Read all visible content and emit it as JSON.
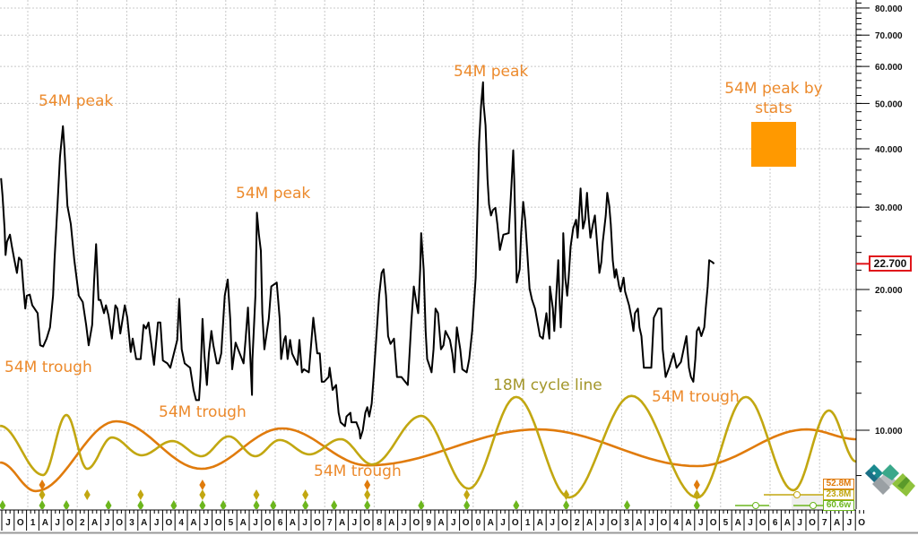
{
  "chart_data": {
    "type": "line",
    "y_scale": "log",
    "ylim": [
      6.5,
      85
    ],
    "y_ticks": [
      "10.000",
      "20.000",
      "30.000",
      "40.000",
      "50.000",
      "60.000",
      "70.000",
      "80.000"
    ],
    "y_tick_values": [
      10,
      20,
      30,
      40,
      50,
      60,
      70,
      80
    ],
    "grid": true,
    "x_range": [
      2000.44,
      2017.9
    ],
    "x_tick_labels": [
      "J",
      "O",
      "1",
      "A",
      "J",
      "O",
      "2",
      "A",
      "J",
      "O",
      "3",
      "A",
      "J",
      "O",
      "4",
      "A",
      "J",
      "O",
      "5",
      "A",
      "J",
      "O",
      "6",
      "A",
      "J",
      "O",
      "7",
      "A",
      "J",
      "O",
      "8",
      "A",
      "J",
      "O",
      "9",
      "A",
      "J",
      "O",
      "0",
      "A",
      "J",
      "O",
      "1",
      "A",
      "J",
      "O",
      "2",
      "A",
      "J",
      "O",
      "3",
      "A",
      "J",
      "O",
      "4",
      "A",
      "J",
      "O",
      "5",
      "A",
      "J",
      "O",
      "6",
      "A",
      "J",
      "O",
      "7",
      "A",
      "J",
      "O"
    ],
    "last_value": "22.700",
    "price": [
      [
        2000.46,
        34.6
      ],
      [
        2000.49,
        31.8
      ],
      [
        2000.53,
        27.0
      ],
      [
        2000.55,
        23.7
      ],
      [
        2000.58,
        25.3
      ],
      [
        2000.64,
        26.2
      ],
      [
        2000.68,
        24.7
      ],
      [
        2000.73,
        23.1
      ],
      [
        2000.78,
        21.7
      ],
      [
        2000.82,
        23.4
      ],
      [
        2000.87,
        23.1
      ],
      [
        2000.91,
        20.3
      ],
      [
        2000.95,
        18.2
      ],
      [
        2000.98,
        19.4
      ],
      [
        2001.04,
        19.5
      ],
      [
        2001.09,
        18.5
      ],
      [
        2001.2,
        17.8
      ],
      [
        2001.25,
        15.2
      ],
      [
        2001.31,
        15.1
      ],
      [
        2001.38,
        15.7
      ],
      [
        2001.45,
        16.6
      ],
      [
        2001.51,
        19.4
      ],
      [
        2001.54,
        23.1
      ],
      [
        2001.6,
        30.2
      ],
      [
        2001.65,
        38.4
      ],
      [
        2001.71,
        44.7
      ],
      [
        2001.74,
        40.2
      ],
      [
        2001.8,
        30.2
      ],
      [
        2001.87,
        27.6
      ],
      [
        2001.94,
        23.1
      ],
      [
        2002.03,
        19.4
      ],
      [
        2002.11,
        18.8
      ],
      [
        2002.18,
        16.8
      ],
      [
        2002.23,
        15.2
      ],
      [
        2002.3,
        16.8
      ],
      [
        2002.34,
        20.9
      ],
      [
        2002.38,
        25.0
      ],
      [
        2002.43,
        19.0
      ],
      [
        2002.47,
        19.0
      ],
      [
        2002.54,
        17.8
      ],
      [
        2002.58,
        18.5
      ],
      [
        2002.63,
        17.6
      ],
      [
        2002.7,
        15.7
      ],
      [
        2002.77,
        18.5
      ],
      [
        2002.81,
        18.2
      ],
      [
        2002.87,
        16.1
      ],
      [
        2002.96,
        18.5
      ],
      [
        2003.01,
        17.4
      ],
      [
        2003.08,
        14.7
      ],
      [
        2003.12,
        15.7
      ],
      [
        2003.19,
        14.2
      ],
      [
        2003.28,
        14.2
      ],
      [
        2003.34,
        16.8
      ],
      [
        2003.39,
        16.5
      ],
      [
        2003.44,
        17.0
      ],
      [
        2003.55,
        13.8
      ],
      [
        2003.63,
        17.0
      ],
      [
        2003.68,
        17.0
      ],
      [
        2003.73,
        14.1
      ],
      [
        2003.82,
        13.9
      ],
      [
        2003.88,
        13.6
      ],
      [
        2004.02,
        15.6
      ],
      [
        2004.06,
        19.1
      ],
      [
        2004.11,
        14.9
      ],
      [
        2004.17,
        13.9
      ],
      [
        2004.28,
        13.6
      ],
      [
        2004.35,
        12.2
      ],
      [
        2004.4,
        11.6
      ],
      [
        2004.46,
        11.6
      ],
      [
        2004.49,
        13.0
      ],
      [
        2004.53,
        17.3
      ],
      [
        2004.57,
        14.4
      ],
      [
        2004.62,
        12.5
      ],
      [
        2004.66,
        14.6
      ],
      [
        2004.71,
        16.3
      ],
      [
        2004.75,
        15.2
      ],
      [
        2004.82,
        13.9
      ],
      [
        2004.86,
        13.9
      ],
      [
        2004.91,
        14.6
      ],
      [
        2004.98,
        19.4
      ],
      [
        2005.04,
        21.0
      ],
      [
        2005.09,
        17.3
      ],
      [
        2005.13,
        13.5
      ],
      [
        2005.2,
        15.4
      ],
      [
        2005.25,
        14.9
      ],
      [
        2005.36,
        13.9
      ],
      [
        2005.4,
        15.6
      ],
      [
        2005.45,
        18.3
      ],
      [
        2005.49,
        14.9
      ],
      [
        2005.53,
        11.9
      ],
      [
        2005.54,
        14.2
      ],
      [
        2005.6,
        19.4
      ],
      [
        2005.63,
        29.2
      ],
      [
        2005.67,
        26.2
      ],
      [
        2005.71,
        24.2
      ],
      [
        2005.74,
        17.8
      ],
      [
        2005.78,
        14.9
      ],
      [
        2005.87,
        17.3
      ],
      [
        2005.92,
        20.3
      ],
      [
        2006.03,
        20.7
      ],
      [
        2006.09,
        17.3
      ],
      [
        2006.12,
        14.2
      ],
      [
        2006.18,
        15.6
      ],
      [
        2006.21,
        15.9
      ],
      [
        2006.25,
        14.2
      ],
      [
        2006.3,
        15.6
      ],
      [
        2006.34,
        14.6
      ],
      [
        2006.45,
        13.8
      ],
      [
        2006.49,
        15.6
      ],
      [
        2006.54,
        13.3
      ],
      [
        2006.58,
        13.5
      ],
      [
        2006.68,
        13.3
      ],
      [
        2006.74,
        15.9
      ],
      [
        2006.77,
        17.4
      ],
      [
        2006.85,
        14.6
      ],
      [
        2006.9,
        14.6
      ],
      [
        2006.94,
        12.7
      ],
      [
        2006.99,
        12.7
      ],
      [
        2007.08,
        13.0
      ],
      [
        2007.1,
        13.6
      ],
      [
        2007.16,
        12.2
      ],
      [
        2007.23,
        12.5
      ],
      [
        2007.28,
        10.9
      ],
      [
        2007.32,
        10.4
      ],
      [
        2007.41,
        10.2
      ],
      [
        2007.44,
        10.7
      ],
      [
        2007.52,
        10.9
      ],
      [
        2007.54,
        10.4
      ],
      [
        2007.59,
        10.4
      ],
      [
        2007.64,
        10.4
      ],
      [
        2007.7,
        10.0
      ],
      [
        2007.72,
        9.6
      ],
      [
        2007.77,
        10.0
      ],
      [
        2007.82,
        10.9
      ],
      [
        2007.86,
        11.2
      ],
      [
        2007.9,
        10.7
      ],
      [
        2007.95,
        11.4
      ],
      [
        2007.99,
        13.0
      ],
      [
        2008.04,
        15.6
      ],
      [
        2008.1,
        19.4
      ],
      [
        2008.15,
        21.7
      ],
      [
        2008.19,
        22.1
      ],
      [
        2008.24,
        19.4
      ],
      [
        2008.28,
        15.9
      ],
      [
        2008.33,
        15.3
      ],
      [
        2008.4,
        15.7
      ],
      [
        2008.46,
        13.0
      ],
      [
        2008.55,
        13.0
      ],
      [
        2008.68,
        12.5
      ],
      [
        2008.75,
        17.0
      ],
      [
        2008.8,
        20.3
      ],
      [
        2008.86,
        18.5
      ],
      [
        2008.89,
        17.8
      ],
      [
        2008.93,
        22.1
      ],
      [
        2008.95,
        26.4
      ],
      [
        2009.0,
        22.1
      ],
      [
        2009.04,
        16.3
      ],
      [
        2009.07,
        14.2
      ],
      [
        2009.13,
        13.6
      ],
      [
        2009.16,
        13.3
      ],
      [
        2009.2,
        14.9
      ],
      [
        2009.24,
        18.2
      ],
      [
        2009.29,
        17.8
      ],
      [
        2009.35,
        14.9
      ],
      [
        2009.4,
        15.2
      ],
      [
        2009.44,
        16.3
      ],
      [
        2009.53,
        15.6
      ],
      [
        2009.58,
        14.6
      ],
      [
        2009.62,
        13.3
      ],
      [
        2009.67,
        16.6
      ],
      [
        2009.74,
        14.9
      ],
      [
        2009.78,
        13.5
      ],
      [
        2009.87,
        13.3
      ],
      [
        2009.92,
        14.2
      ],
      [
        2009.98,
        16.3
      ],
      [
        2010.05,
        21.2
      ],
      [
        2010.09,
        30.2
      ],
      [
        2010.12,
        41.1
      ],
      [
        2010.16,
        49.4
      ],
      [
        2010.2,
        55.5
      ],
      [
        2010.21,
        50.0
      ],
      [
        2010.25,
        44.9
      ],
      [
        2010.29,
        34.5
      ],
      [
        2010.32,
        30.4
      ],
      [
        2010.36,
        28.8
      ],
      [
        2010.4,
        29.6
      ],
      [
        2010.45,
        29.9
      ],
      [
        2010.49,
        27.6
      ],
      [
        2010.54,
        24.3
      ],
      [
        2010.61,
        26.2
      ],
      [
        2010.72,
        26.4
      ],
      [
        2010.76,
        31.5
      ],
      [
        2010.81,
        39.7
      ],
      [
        2010.83,
        34.5
      ],
      [
        2010.87,
        23.1
      ],
      [
        2010.88,
        20.7
      ],
      [
        2010.94,
        22.1
      ],
      [
        2010.97,
        26.4
      ],
      [
        2011.01,
        30.8
      ],
      [
        2011.05,
        28.2
      ],
      [
        2011.08,
        25.3
      ],
      [
        2011.14,
        20.1
      ],
      [
        2011.19,
        19.0
      ],
      [
        2011.25,
        18.2
      ],
      [
        2011.3,
        17.0
      ],
      [
        2011.35,
        15.9
      ],
      [
        2011.41,
        15.7
      ],
      [
        2011.44,
        16.6
      ],
      [
        2011.48,
        17.8
      ],
      [
        2011.54,
        15.7
      ],
      [
        2011.55,
        20.3
      ],
      [
        2011.61,
        18.2
      ],
      [
        2011.64,
        16.3
      ],
      [
        2011.68,
        19.4
      ],
      [
        2011.72,
        23.1
      ],
      [
        2011.75,
        18.5
      ],
      [
        2011.77,
        16.6
      ],
      [
        2011.81,
        20.7
      ],
      [
        2011.82,
        26.4
      ],
      [
        2011.86,
        21.2
      ],
      [
        2011.9,
        19.4
      ],
      [
        2011.93,
        21.2
      ],
      [
        2011.97,
        24.7
      ],
      [
        2012.02,
        27.0
      ],
      [
        2012.08,
        28.2
      ],
      [
        2012.11,
        25.8
      ],
      [
        2012.13,
        27.6
      ],
      [
        2012.17,
        32.9
      ],
      [
        2012.19,
        30.2
      ],
      [
        2012.22,
        27.0
      ],
      [
        2012.26,
        28.2
      ],
      [
        2012.3,
        32.2
      ],
      [
        2012.33,
        28.8
      ],
      [
        2012.37,
        25.8
      ],
      [
        2012.42,
        27.6
      ],
      [
        2012.46,
        28.8
      ],
      [
        2012.53,
        23.1
      ],
      [
        2012.55,
        21.7
      ],
      [
        2012.59,
        22.9
      ],
      [
        2012.62,
        25.3
      ],
      [
        2012.68,
        28.8
      ],
      [
        2012.71,
        32.2
      ],
      [
        2012.75,
        30.2
      ],
      [
        2012.78,
        27.6
      ],
      [
        2012.82,
        23.1
      ],
      [
        2012.86,
        21.2
      ],
      [
        2012.89,
        22.1
      ],
      [
        2012.95,
        20.3
      ],
      [
        2012.98,
        19.8
      ],
      [
        2013.04,
        21.2
      ],
      [
        2013.07,
        19.8
      ],
      [
        2013.15,
        18.5
      ],
      [
        2013.2,
        17.4
      ],
      [
        2013.24,
        16.3
      ],
      [
        2013.27,
        17.8
      ],
      [
        2013.33,
        18.2
      ],
      [
        2013.36,
        16.6
      ],
      [
        2013.4,
        15.9
      ],
      [
        2013.45,
        13.6
      ],
      [
        2013.6,
        13.6
      ],
      [
        2013.65,
        17.4
      ],
      [
        2013.74,
        18.2
      ],
      [
        2013.8,
        18.2
      ],
      [
        2013.83,
        14.9
      ],
      [
        2013.89,
        13.0
      ],
      [
        2013.96,
        13.6
      ],
      [
        2014.05,
        14.6
      ],
      [
        2014.11,
        13.6
      ],
      [
        2014.2,
        14.0
      ],
      [
        2014.27,
        15.2
      ],
      [
        2014.31,
        15.9
      ],
      [
        2014.36,
        13.6
      ],
      [
        2014.4,
        13.0
      ],
      [
        2014.45,
        12.7
      ],
      [
        2014.49,
        14.2
      ],
      [
        2014.52,
        16.3
      ],
      [
        2014.56,
        16.6
      ],
      [
        2014.61,
        15.9
      ],
      [
        2014.67,
        16.6
      ],
      [
        2014.7,
        18.2
      ],
      [
        2014.74,
        20.3
      ],
      [
        2014.77,
        23.1
      ],
      [
        2014.83,
        22.9
      ],
      [
        2014.87,
        22.7
      ]
    ],
    "cycles": [
      {
        "name": "52.8M",
        "color": "#e07b0c",
        "extrema": [
          [
            2000.44,
            8.53
          ],
          [
            2001.16,
            7.41
          ],
          [
            2002.79,
            10.45
          ],
          [
            2004.51,
            8.27
          ],
          [
            2006.14,
            10.09
          ],
          [
            2007.87,
            8.41
          ],
          [
            2011.31,
            10.04
          ],
          [
            2014.53,
            8.38
          ],
          [
            2016.74,
            10.04
          ],
          [
            2017.74,
            9.57
          ]
        ]
      },
      {
        "name": "23.8M",
        "color": "#c2a711",
        "extrema": [
          [
            2000.44,
            10.22
          ],
          [
            2001.31,
            8.02
          ],
          [
            2001.78,
            10.78
          ],
          [
            2002.2,
            8.27
          ],
          [
            2002.7,
            9.65
          ],
          [
            2003.3,
            8.84
          ],
          [
            2003.92,
            9.48
          ],
          [
            2004.51,
            8.8
          ],
          [
            2005.06,
            9.7
          ],
          [
            2005.6,
            8.8
          ],
          [
            2006.09,
            9.53
          ],
          [
            2006.69,
            8.88
          ],
          [
            2007.32,
            9.57
          ],
          [
            2007.96,
            8.45
          ],
          [
            2008.95,
            10.73
          ],
          [
            2009.91,
            7.5
          ],
          [
            2010.87,
            11.78
          ],
          [
            2011.94,
            7.18
          ],
          [
            2013.2,
            11.84
          ],
          [
            2014.53,
            7.18
          ],
          [
            2015.51,
            11.78
          ],
          [
            2016.47,
            7.44
          ],
          [
            2017.19,
            11.02
          ],
          [
            2017.74,
            8.57
          ]
        ]
      }
    ],
    "markers": {
      "orange": {
        "color": "#e07b0c",
        "x": [
          2001.29,
          2004.53,
          2007.86,
          2014.52
        ]
      },
      "yellow": {
        "color": "#c2a711",
        "x": [
          2001.29,
          2002.2,
          2003.28,
          2004.53,
          2005.62,
          2006.61,
          2007.86,
          2009.87,
          2011.88,
          2014.52
        ]
      },
      "green": {
        "color": "#6cb61e",
        "x": [
          2000.49,
          2001.29,
          2001.78,
          2002.63,
          2003.28,
          2003.95,
          2004.53,
          2004.95,
          2005.62,
          2005.96,
          2006.61,
          2007.19,
          2007.86,
          2008.95,
          2009.87,
          2010.87,
          2011.88,
          2013.11,
          2014.52
        ]
      }
    },
    "legend": [
      {
        "label": "52.8M",
        "color": "#e07b0c"
      },
      {
        "label": "23.8M",
        "color": "#c2a711"
      },
      {
        "label": "60.6w",
        "color": "#6cb61e"
      }
    ],
    "annotations": {
      "peak1": "54M peak",
      "peak2": "54M peak",
      "peak3": "54M peak",
      "peak_stats_line1": "54M peak by",
      "peak_stats_line2": "stats",
      "trough1": "54M trough",
      "trough2": "54M trough",
      "trough3": "54M trough",
      "trough4": "54M trough",
      "cycle_line": "18M cycle line"
    },
    "colors": {
      "price": "#000000",
      "annotation": "#ec8a2c",
      "stats_box": "#ff9900",
      "last_price_border": "#e0161b"
    }
  }
}
